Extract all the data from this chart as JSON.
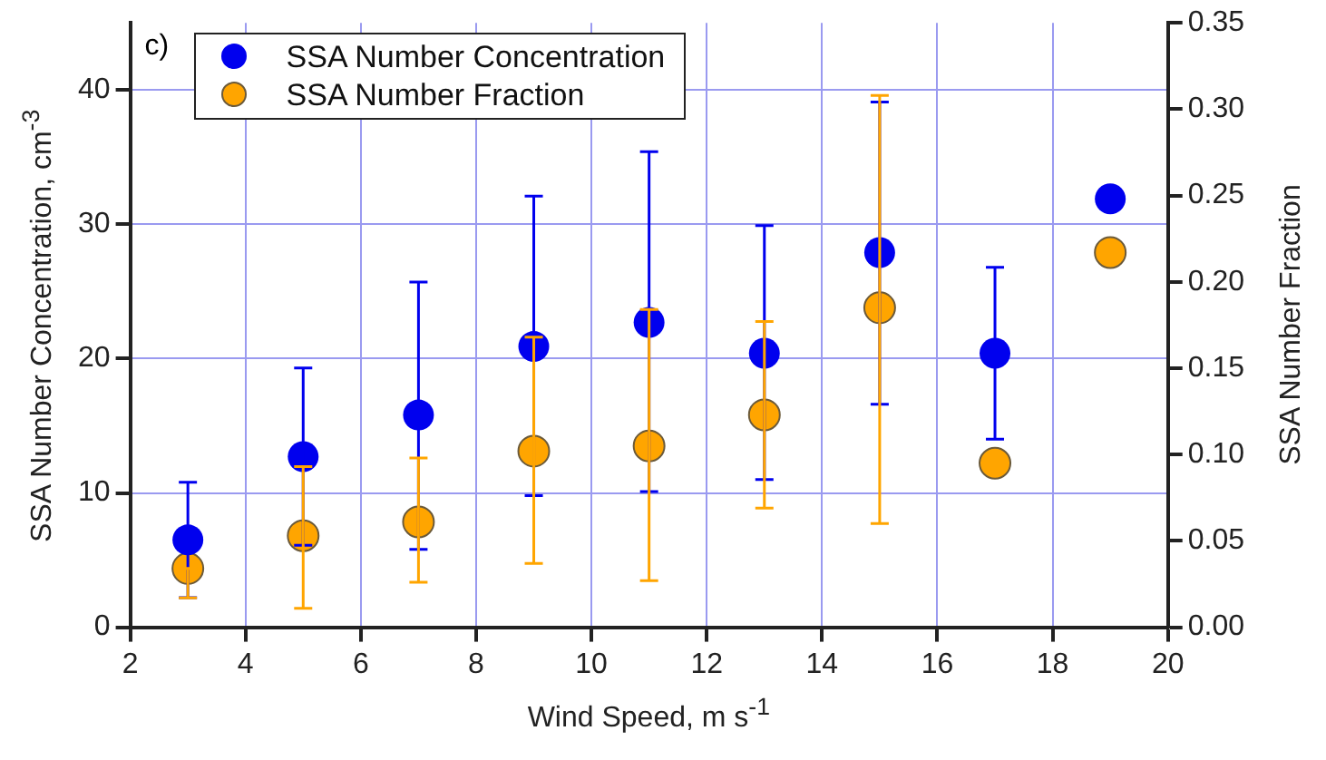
{
  "chart_data": {
    "type": "scatter",
    "xlabel": "Wind Speed, m s$^{-1}$",
    "ylabel": "SSA Number Concentration, cm$^{-3}$",
    "y2label": "SSA Number Fraction",
    "x": [
      3,
      5,
      7,
      9,
      11,
      13,
      15,
      17,
      19
    ],
    "series": [
      {
        "name": "SSA Number Concentration",
        "color": "#0000ee",
        "values": [
          6.5,
          12.7,
          15.8,
          20.9,
          22.7,
          20.4,
          27.9,
          20.4,
          31.9
        ],
        "errors": [
          [
            2.2,
            10.8
          ],
          [
            6.1,
            19.3
          ],
          [
            5.8,
            25.7
          ],
          [
            9.8,
            32.1
          ],
          [
            10.1,
            35.4
          ],
          [
            11.0,
            29.9
          ],
          [
            16.6,
            39.1
          ],
          [
            14.0,
            26.8
          ],
          null
        ]
      },
      {
        "name": "SSA Number Fraction",
        "color": "#ffa500",
        "axis": "y2",
        "values": [
          0.034,
          0.053,
          0.061,
          0.102,
          0.105,
          0.123,
          0.185,
          0.095,
          0.217
        ],
        "errors": [
          [
            0.017,
            0.034
          ],
          [
            0.011,
            0.093
          ],
          [
            0.026,
            0.098
          ],
          [
            0.037,
            0.168
          ],
          [
            0.027,
            0.184
          ],
          [
            0.069,
            0.177
          ],
          [
            0.06,
            0.308
          ],
          null,
          null
        ]
      }
    ],
    "xlim": [
      2,
      20
    ],
    "xticks": [
      2,
      4,
      6,
      8,
      10,
      12,
      14,
      16,
      18,
      20
    ],
    "ylim": [
      0,
      45
    ],
    "yticks": [
      0,
      10,
      20,
      30,
      40
    ],
    "y2lim": [
      0,
      0.35
    ],
    "y2ticks": [
      {
        "value": 0,
        "label": "0.00"
      },
      {
        "value": 0.05,
        "label": "0.05"
      },
      {
        "value": 0.1,
        "label": "0.10"
      },
      {
        "value": 0.15,
        "label": "0.15"
      },
      {
        "value": 0.2,
        "label": "0.20"
      },
      {
        "value": 0.25,
        "label": "0.25"
      },
      {
        "value": 0.3,
        "label": "0.30"
      },
      {
        "value": 0.35,
        "label": "0.35"
      }
    ],
    "grid": true,
    "legend": "top left",
    "marker": "circle",
    "annotations": [
      "c)"
    ]
  }
}
